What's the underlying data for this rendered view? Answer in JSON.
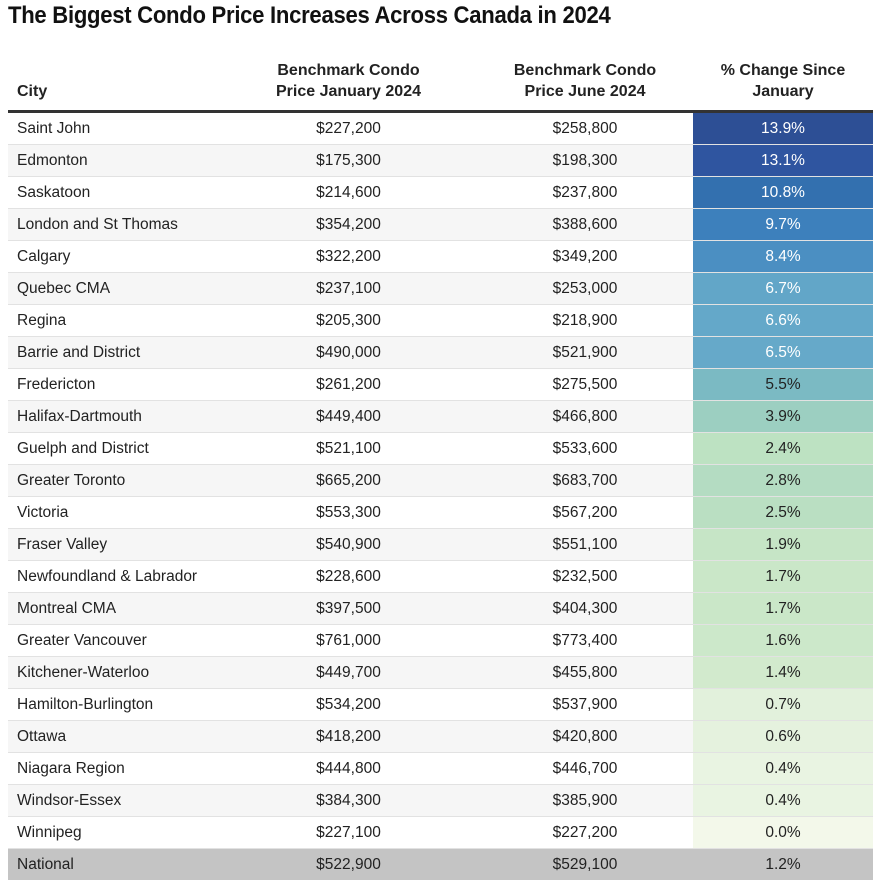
{
  "title": "The Biggest Condo Price Increases Across Canada in 2024",
  "chart_data": {
    "type": "table",
    "title": "The Biggest Condo Price Increases Across Canada in 2024",
    "columns": [
      "City",
      "Benchmark Condo Price January 2024",
      "Benchmark Condo Price June 2024",
      "% Change Since January"
    ],
    "header_lines": {
      "city": "City",
      "jan_line1": "Benchmark Condo",
      "jan_line2": "Price January 2024",
      "jun_line1": "Benchmark Condo",
      "jun_line2": "Price June 2024",
      "pct_line1": "% Change Since",
      "pct_line2": "January"
    },
    "rows": [
      {
        "city": "Saint John",
        "jan": "$227,200",
        "jun": "$258,800",
        "pct": "13.9%",
        "value": 13.9
      },
      {
        "city": "Edmonton",
        "jan": "$175,300",
        "jun": "$198,300",
        "pct": "13.1%",
        "value": 13.1
      },
      {
        "city": "Saskatoon",
        "jan": "$214,600",
        "jun": "$237,800",
        "pct": "10.8%",
        "value": 10.8
      },
      {
        "city": "London and St Thomas",
        "jan": "$354,200",
        "jun": "$388,600",
        "pct": "9.7%",
        "value": 9.7
      },
      {
        "city": "Calgary",
        "jan": "$322,200",
        "jun": "$349,200",
        "pct": "8.4%",
        "value": 8.4
      },
      {
        "city": "Quebec CMA",
        "jan": "$237,100",
        "jun": "$253,000",
        "pct": "6.7%",
        "value": 6.7
      },
      {
        "city": "Regina",
        "jan": "$205,300",
        "jun": "$218,900",
        "pct": "6.6%",
        "value": 6.6
      },
      {
        "city": "Barrie and District",
        "jan": "$490,000",
        "jun": "$521,900",
        "pct": "6.5%",
        "value": 6.5
      },
      {
        "city": "Fredericton",
        "jan": "$261,200",
        "jun": "$275,500",
        "pct": "5.5%",
        "value": 5.5
      },
      {
        "city": "Halifax-Dartmouth",
        "jan": "$449,400",
        "jun": "$466,800",
        "pct": "3.9%",
        "value": 3.9
      },
      {
        "city": "Guelph and District",
        "jan": "$521,100",
        "jun": "$533,600",
        "pct": "2.4%",
        "value": 2.4
      },
      {
        "city": "Greater Toronto",
        "jan": "$665,200",
        "jun": "$683,700",
        "pct": "2.8%",
        "value": 2.8
      },
      {
        "city": "Victoria",
        "jan": "$553,300",
        "jun": "$567,200",
        "pct": "2.5%",
        "value": 2.5
      },
      {
        "city": "Fraser Valley",
        "jan": "$540,900",
        "jun": "$551,100",
        "pct": "1.9%",
        "value": 1.9
      },
      {
        "city": "Newfoundland & Labrador",
        "jan": "$228,600",
        "jun": "$232,500",
        "pct": "1.7%",
        "value": 1.7
      },
      {
        "city": "Montreal CMA",
        "jan": "$397,500",
        "jun": "$404,300",
        "pct": "1.7%",
        "value": 1.7
      },
      {
        "city": "Greater Vancouver",
        "jan": "$761,000",
        "jun": "$773,400",
        "pct": "1.6%",
        "value": 1.6
      },
      {
        "city": "Kitchener-Waterloo",
        "jan": "$449,700",
        "jun": "$455,800",
        "pct": "1.4%",
        "value": 1.4
      },
      {
        "city": "Hamilton-Burlington",
        "jan": "$534,200",
        "jun": "$537,900",
        "pct": "0.7%",
        "value": 0.7
      },
      {
        "city": "Ottawa",
        "jan": "$418,200",
        "jun": "$420,800",
        "pct": "0.6%",
        "value": 0.6
      },
      {
        "city": "Niagara Region",
        "jan": "$444,800",
        "jun": "$446,700",
        "pct": "0.4%",
        "value": 0.4
      },
      {
        "city": "Windsor-Essex",
        "jan": "$384,300",
        "jun": "$385,900",
        "pct": "0.4%",
        "value": 0.4
      },
      {
        "city": "Winnipeg",
        "jan": "$227,100",
        "jun": "$227,200",
        "pct": "0.0%",
        "value": 0.0
      }
    ],
    "total_row": {
      "city": "National",
      "jan": "$522,900",
      "jun": "$529,100",
      "pct": "1.2%",
      "value": 1.2
    },
    "heat_colors": {
      "13.9": "#2d4f95",
      "13.1": "#2f55a0",
      "10.8": "#3370af",
      "9.7": "#3d80bc",
      "8.4": "#4b8fc2",
      "6.7": "#62a6c8",
      "6.6": "#64a8c9",
      "6.5": "#66a9c9",
      "5.5": "#7bbac3",
      "3.9": "#9ccfc1",
      "2.4": "#bde2c2",
      "2.8": "#b4dcc2",
      "2.5": "#badfc2",
      "1.9": "#c6e5c6",
      "1.7": "#cae7c8",
      "1.6": "#cce8ca",
      "1.4": "#d2eacd",
      "0.7": "#e2f1dc",
      "0.6": "#e5f2de",
      "0.4": "#e9f4e2",
      "0.0": "#f3f8ea",
      "total": "#c4c4c4"
    },
    "text_colors": {
      "dark": "#222222",
      "light": "#ffffff"
    }
  }
}
